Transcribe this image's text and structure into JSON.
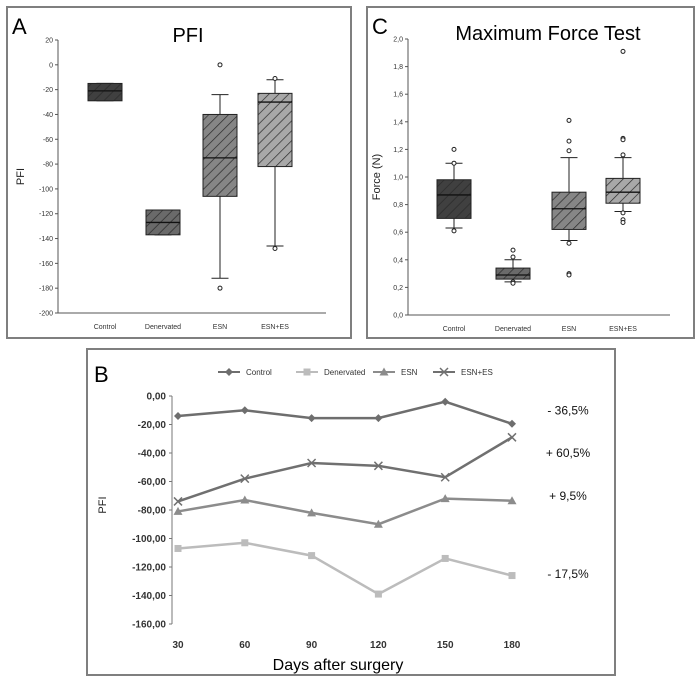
{
  "colors": {
    "control_dark": "#404040",
    "denervated": "#6a6a6a",
    "esn": "#868686",
    "esn_es": "#a8a8a8",
    "hatch": "#2a2a2a",
    "line_control": "#6e6e6e",
    "line_denervated": "#bcbcbc",
    "line_esn": "#8c8c8c",
    "line_esn_es": "#707070"
  },
  "chart_data": [
    {
      "panel": "A",
      "type": "box",
      "title": "PFI",
      "ylabel": "PFI",
      "ylim": [
        -200,
        20
      ],
      "yticks": [
        "20",
        "0",
        "-20",
        "-40",
        "-60",
        "-80",
        "-100",
        "-120",
        "-140",
        "-160",
        "-180",
        "-200"
      ],
      "ytick_values": [
        20,
        0,
        -20,
        -40,
        -60,
        -80,
        -100,
        -120,
        -140,
        -160,
        -180,
        -200
      ],
      "categories": [
        "Control",
        "Denervated",
        "ESN",
        "ESN+ES"
      ],
      "boxes": [
        {
          "q1": -29,
          "median": -21,
          "q3": -15,
          "whisker_low": -29,
          "whisker_high": -15,
          "outliers": []
        },
        {
          "q1": -137,
          "median": -127,
          "q3": -117,
          "whisker_low": -137,
          "whisker_high": -117,
          "outliers": []
        },
        {
          "q1": -106,
          "median": -75,
          "q3": -40,
          "whisker_low": -172,
          "whisker_high": -24,
          "outliers": [
            0,
            -180
          ]
        },
        {
          "q1": -82,
          "median": -30,
          "q3": -23,
          "whisker_low": -146,
          "whisker_high": -12,
          "outliers": [
            -11,
            -148
          ]
        }
      ]
    },
    {
      "panel": "C",
      "type": "box",
      "title": "Maximum Force Test",
      "ylabel": "Force (N)",
      "ylim": [
        0,
        2.0
      ],
      "yticks": [
        "2,0",
        "1,8",
        "1,6",
        "1,4",
        "1,2",
        "1,0",
        "0,8",
        "0,6",
        "0,4",
        "0,2",
        "0,0"
      ],
      "ytick_values": [
        2.0,
        1.8,
        1.6,
        1.4,
        1.2,
        1.0,
        0.8,
        0.6,
        0.4,
        0.2,
        0.0
      ],
      "categories": [
        "Control",
        "Denervated",
        "ESN",
        "ESN+ES"
      ],
      "boxes": [
        {
          "q1": 0.7,
          "median": 0.87,
          "q3": 0.98,
          "whisker_low": 0.63,
          "whisker_high": 1.1,
          "outliers": [
            1.2,
            1.1,
            0.61
          ]
        },
        {
          "q1": 0.26,
          "median": 0.29,
          "q3": 0.34,
          "whisker_low": 0.24,
          "whisker_high": 0.4,
          "outliers": [
            0.47,
            0.42,
            0.24,
            0.23
          ]
        },
        {
          "q1": 0.62,
          "median": 0.77,
          "q3": 0.89,
          "whisker_low": 0.54,
          "whisker_high": 1.14,
          "outliers": [
            1.41,
            1.26,
            1.19,
            0.52,
            0.3,
            0.29
          ]
        },
        {
          "q1": 0.81,
          "median": 0.89,
          "q3": 0.99,
          "whisker_low": 0.75,
          "whisker_high": 1.14,
          "outliers": [
            1.91,
            1.28,
            1.27,
            1.16,
            0.74,
            0.69,
            0.67
          ]
        }
      ]
    },
    {
      "panel": "B",
      "type": "line",
      "xlabel": "Days after surgery",
      "ylabel": "PFI",
      "x": [
        30,
        60,
        90,
        120,
        150,
        180
      ],
      "ylim": [
        -160,
        0
      ],
      "yticks": [
        "0,00",
        "-20,00",
        "-40,00",
        "-60,00",
        "-80,00",
        "-100,00",
        "-120,00",
        "-140,00",
        "-160,00"
      ],
      "ytick_values": [
        0,
        -20,
        -40,
        -60,
        -80,
        -100,
        -120,
        -140,
        -160
      ],
      "legend_position": "top",
      "series": [
        {
          "name": "Control",
          "marker": "diamond",
          "values": [
            -14,
            -10,
            -15.5,
            -15.5,
            -4,
            -19.5
          ],
          "change": "- 36,5%"
        },
        {
          "name": "Denervated",
          "marker": "square",
          "values": [
            -107,
            -103,
            -112,
            -139,
            -114,
            -126
          ],
          "change": "- 17,5%"
        },
        {
          "name": "ESN",
          "marker": "triangle",
          "values": [
            -81,
            -73,
            -82,
            -90,
            -72,
            -73.5
          ],
          "change": "+ 9,5%"
        },
        {
          "name": "ESN+ES",
          "marker": "x",
          "values": [
            -74,
            -58,
            -47,
            -49,
            -57,
            -29
          ],
          "change": "+ 60,5%"
        }
      ]
    }
  ],
  "panel_letters": {
    "a": "A",
    "b": "B",
    "c": "C"
  }
}
